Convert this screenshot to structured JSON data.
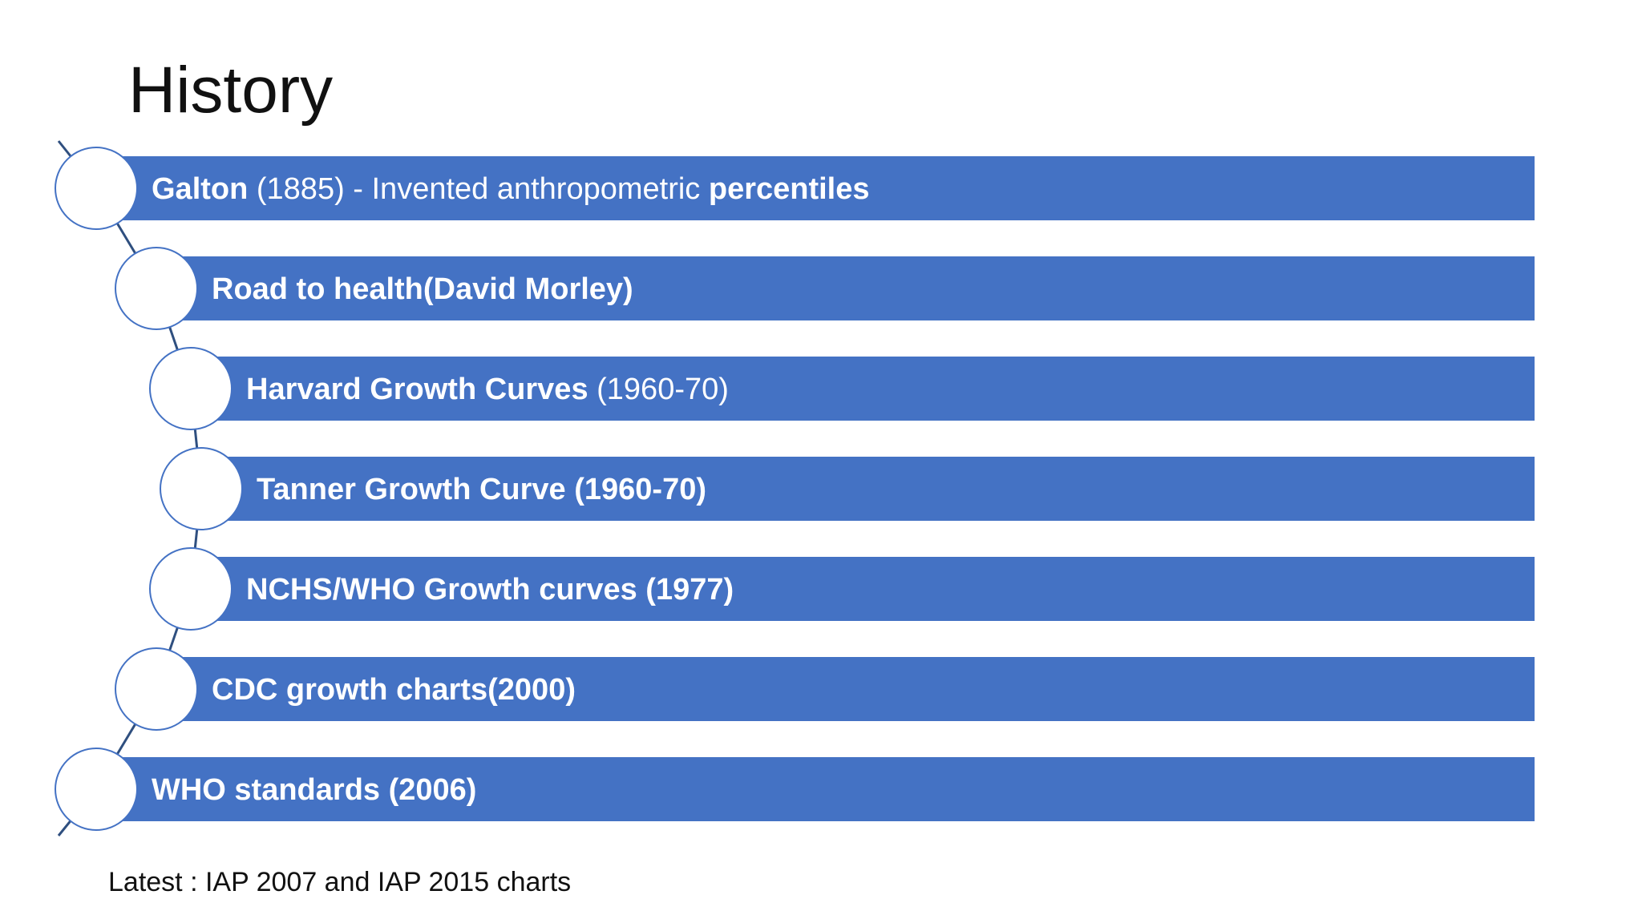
{
  "title": "History",
  "items": [
    {
      "runs": [
        {
          "text": "Galton",
          "bold": true
        },
        {
          "text": " (1885) - Invented anthropometric ",
          "bold": false
        },
        {
          "text": "percentiles",
          "bold": true
        }
      ]
    },
    {
      "runs": [
        {
          "text": "Road to health(David Morley)",
          "bold": true
        }
      ]
    },
    {
      "runs": [
        {
          "text": "Harvard Growth Curves",
          "bold": true
        },
        {
          "text": " (1960-70)",
          "bold": false
        }
      ]
    },
    {
      "runs": [
        {
          "text": "Tanner Growth Curve (1960-70)",
          "bold": true
        }
      ]
    },
    {
      "runs": [
        {
          "text": "NCHS/WHO Growth curves (1977)",
          "bold": true
        }
      ]
    },
    {
      "runs": [
        {
          "text": "CDC growth charts(2000)",
          "bold": true
        }
      ]
    },
    {
      "runs": [
        {
          "text": "WHO standards (2006)",
          "bold": true
        }
      ]
    }
  ],
  "footnote": "Latest : IAP 2007 and IAP 2015 charts"
}
